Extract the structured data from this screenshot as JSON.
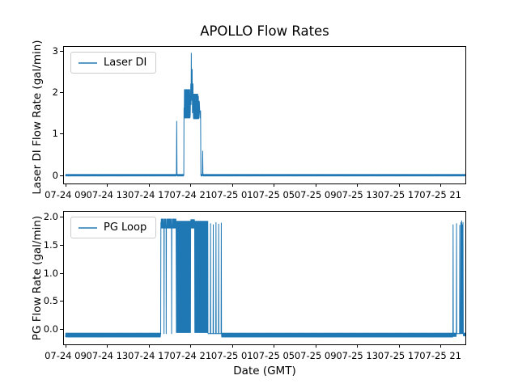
{
  "figure": {
    "title": "APOLLO Flow Rates",
    "background": "#ffffff",
    "accent_color": "#1f77b4",
    "axis_color": "#000000"
  },
  "chart_data": [
    {
      "type": "line",
      "title": "APOLLO Flow Rates",
      "legend": "Laser DI",
      "legend_position": "upper left",
      "ylabel": "Laser DI Flow Rate (gal/min)",
      "xlabel": "",
      "color": "#1f77b4",
      "grid": false,
      "xlim": [
        -0.15,
        38.4
      ],
      "ylim": [
        -0.2,
        3.09
      ],
      "yticks": [
        {
          "v": 0,
          "label": "0"
        },
        {
          "v": 1,
          "label": "1"
        },
        {
          "v": 2,
          "label": "2"
        },
        {
          "v": 3,
          "label": "3"
        }
      ],
      "xticks": [
        {
          "t": 0,
          "label": "07-24 09"
        },
        {
          "t": 4,
          "label": "07-24 13"
        },
        {
          "t": 8,
          "label": "07-24 17"
        },
        {
          "t": 12,
          "label": "07-24 21"
        },
        {
          "t": 16,
          "label": "07-25 01"
        },
        {
          "t": 20,
          "label": "07-25 05"
        },
        {
          "t": 24,
          "label": "07-25 09"
        },
        {
          "t": 28,
          "label": "07-25 13"
        },
        {
          "t": 32,
          "label": "07-25 17"
        },
        {
          "t": 36,
          "label": "07-25 21"
        }
      ],
      "x_unit_note": "hours after first tick (07-24 09 GMT)",
      "segments": [
        {
          "type": "osc",
          "t0": 0,
          "t1": 10.62,
          "lo": -0.02,
          "hi": 0.02,
          "cycles": 160
        },
        {
          "type": "pts",
          "pts": [
            [
              10.65,
              0
            ],
            [
              10.68,
              1.3
            ],
            [
              10.71,
              0
            ]
          ]
        },
        {
          "type": "osc",
          "t0": 10.74,
          "t1": 11.32,
          "lo": -0.02,
          "hi": 0.02,
          "cycles": 9
        },
        {
          "type": "pts",
          "pts": [
            [
              11.36,
              0
            ],
            [
              11.38,
              1.62
            ]
          ]
        },
        {
          "type": "osc",
          "t0": 11.4,
          "t1": 11.95,
          "lo": 1.38,
          "hi": 2.06,
          "cycles": 13
        },
        {
          "type": "pts",
          "pts": [
            [
              11.98,
              1.45
            ],
            [
              12.03,
              2.2
            ],
            [
              12.06,
              1.7
            ],
            [
              12.08,
              2.94
            ],
            [
              12.1,
              1.8
            ],
            [
              12.13,
              2.1
            ],
            [
              12.16,
              2.55
            ],
            [
              12.19,
              1.5
            ],
            [
              12.24,
              2.2
            ],
            [
              12.28,
              1.42
            ]
          ]
        },
        {
          "type": "osc",
          "t0": 12.3,
          "t1": 12.72,
          "lo": 1.36,
          "hi": 1.95,
          "cycles": 10
        },
        {
          "type": "pts",
          "pts": [
            [
              12.76,
              1.9
            ],
            [
              12.8,
              1.36
            ],
            [
              12.85,
              1.78
            ],
            [
              12.92,
              1.38
            ],
            [
              12.97,
              1.55
            ],
            [
              13.0,
              0
            ]
          ]
        },
        {
          "type": "osc",
          "t0": 13.03,
          "t1": 13.12,
          "lo": -0.02,
          "hi": 0.02,
          "cycles": 2
        },
        {
          "type": "pts",
          "pts": [
            [
              13.14,
              0
            ],
            [
              13.17,
              0.58
            ],
            [
              13.2,
              0
            ]
          ]
        },
        {
          "type": "osc",
          "t0": 13.23,
          "t1": 38.4,
          "lo": -0.02,
          "hi": 0.02,
          "cycles": 380
        }
      ]
    },
    {
      "type": "line",
      "legend": "PG Loop",
      "legend_position": "upper left",
      "ylabel": "PG Flow Rate (gal/min)",
      "xlabel": "Date (GMT)",
      "color": "#1f77b4",
      "grid": false,
      "xlim": [
        -0.15,
        38.4
      ],
      "ylim": [
        -0.27,
        2.09
      ],
      "yticks": [
        {
          "v": 0,
          "label": "0.0"
        },
        {
          "v": 0.5,
          "label": "0.5"
        },
        {
          "v": 1,
          "label": "1.0"
        },
        {
          "v": 1.5,
          "label": "1.5"
        },
        {
          "v": 2,
          "label": "2.0"
        }
      ],
      "xticks": [
        {
          "t": 0,
          "label": "07-24 09"
        },
        {
          "t": 4,
          "label": "07-24 13"
        },
        {
          "t": 8,
          "label": "07-24 17"
        },
        {
          "t": 12,
          "label": "07-24 21"
        },
        {
          "t": 16,
          "label": "07-25 01"
        },
        {
          "t": 20,
          "label": "07-25 05"
        },
        {
          "t": 24,
          "label": "07-25 09"
        },
        {
          "t": 28,
          "label": "07-25 13"
        },
        {
          "t": 32,
          "label": "07-25 17"
        },
        {
          "t": 36,
          "label": "07-25 21"
        }
      ],
      "x_unit_note": "hours after first tick (07-24 09 GMT)",
      "segments": [
        {
          "type": "osc",
          "t0": 0,
          "t1": 9.1,
          "lo": -0.14,
          "hi": -0.07,
          "cycles": 140
        },
        {
          "type": "pts",
          "pts": [
            [
              9.14,
              -0.08
            ],
            [
              9.16,
              1.9
            ]
          ]
        },
        {
          "type": "osc",
          "t0": 9.18,
          "t1": 9.44,
          "lo": 1.8,
          "hi": 1.96,
          "cycles": 7
        },
        {
          "type": "pts",
          "pts": [
            [
              9.45,
              1.85
            ],
            [
              9.46,
              -0.08
            ],
            [
              9.48,
              1.85
            ]
          ]
        },
        {
          "type": "osc",
          "t0": 9.5,
          "t1": 9.64,
          "lo": 1.8,
          "hi": 1.96,
          "cycles": 4
        },
        {
          "type": "pts",
          "pts": [
            [
              9.66,
              1.85
            ],
            [
              9.67,
              -0.08
            ],
            [
              9.69,
              1.85
            ]
          ]
        },
        {
          "type": "osc",
          "t0": 9.71,
          "t1": 10.16,
          "lo": 1.8,
          "hi": 1.96,
          "cycles": 12
        },
        {
          "type": "pts",
          "pts": [
            [
              10.18,
              1.85
            ],
            [
              10.19,
              -0.08
            ],
            [
              10.21,
              1.85
            ]
          ]
        },
        {
          "type": "osc",
          "t0": 10.23,
          "t1": 10.62,
          "lo": 1.8,
          "hi": 1.96,
          "cycles": 10
        },
        {
          "type": "osc",
          "t0": 10.65,
          "t1": 12.0,
          "lo": -0.06,
          "hi": 1.92,
          "cycles": 42
        },
        {
          "type": "osc",
          "t0": 12.02,
          "t1": 12.4,
          "lo": 1.8,
          "hi": 1.95,
          "cycles": 9
        },
        {
          "type": "osc",
          "t0": 12.42,
          "t1": 13.68,
          "lo": -0.06,
          "hi": 1.92,
          "cycles": 40
        },
        {
          "type": "pts",
          "pts": [
            [
              13.7,
              -0.08
            ]
          ]
        },
        {
          "type": "pts",
          "pts": [
            [
              13.91,
              -0.08
            ],
            [
              13.93,
              1.88
            ],
            [
              13.95,
              -0.08
            ]
          ]
        },
        {
          "type": "pts",
          "pts": [
            [
              14.17,
              -0.08
            ],
            [
              14.19,
              1.86
            ],
            [
              14.21,
              -0.08
            ]
          ]
        },
        {
          "type": "pts",
          "pts": [
            [
              14.43,
              -0.08
            ],
            [
              14.45,
              1.9
            ],
            [
              14.47,
              -0.08
            ]
          ]
        },
        {
          "type": "pts",
          "pts": [
            [
              14.69,
              -0.08
            ],
            [
              14.71,
              1.87
            ],
            [
              14.73,
              -0.08
            ]
          ]
        },
        {
          "type": "pts",
          "pts": [
            [
              14.94,
              -0.08
            ],
            [
              14.96,
              1.89
            ],
            [
              14.98,
              -0.08
            ]
          ]
        },
        {
          "type": "osc",
          "t0": 15.0,
          "t1": 37.18,
          "lo": -0.14,
          "hi": -0.07,
          "cycles": 340
        },
        {
          "type": "pts",
          "pts": [
            [
              37.2,
              -0.08
            ],
            [
              37.22,
              1.86
            ],
            [
              37.24,
              -0.08
            ]
          ]
        },
        {
          "type": "osc",
          "t0": 37.26,
          "t1": 37.5,
          "lo": -0.13,
          "hi": -0.07,
          "cycles": 4
        },
        {
          "type": "pts",
          "pts": [
            [
              37.53,
              -0.08
            ],
            [
              37.55,
              1.88
            ],
            [
              37.57,
              -0.08
            ]
          ]
        },
        {
          "type": "pts",
          "pts": [
            [
              37.84,
              -0.08
            ],
            [
              37.86,
              1.85
            ],
            [
              37.88,
              -0.08
            ],
            [
              37.95,
              -0.08
            ],
            [
              37.97,
              1.9
            ],
            [
              37.99,
              -0.08
            ],
            [
              38.04,
              1.93
            ],
            [
              38.06,
              -0.08
            ],
            [
              38.1,
              1.86
            ],
            [
              38.13,
              -0.08
            ],
            [
              38.17,
              1.9
            ],
            [
              38.2,
              -0.08
            ]
          ]
        },
        {
          "type": "osc",
          "t0": 38.22,
          "t1": 38.4,
          "lo": -0.12,
          "hi": -0.07,
          "cycles": 3
        }
      ]
    }
  ]
}
